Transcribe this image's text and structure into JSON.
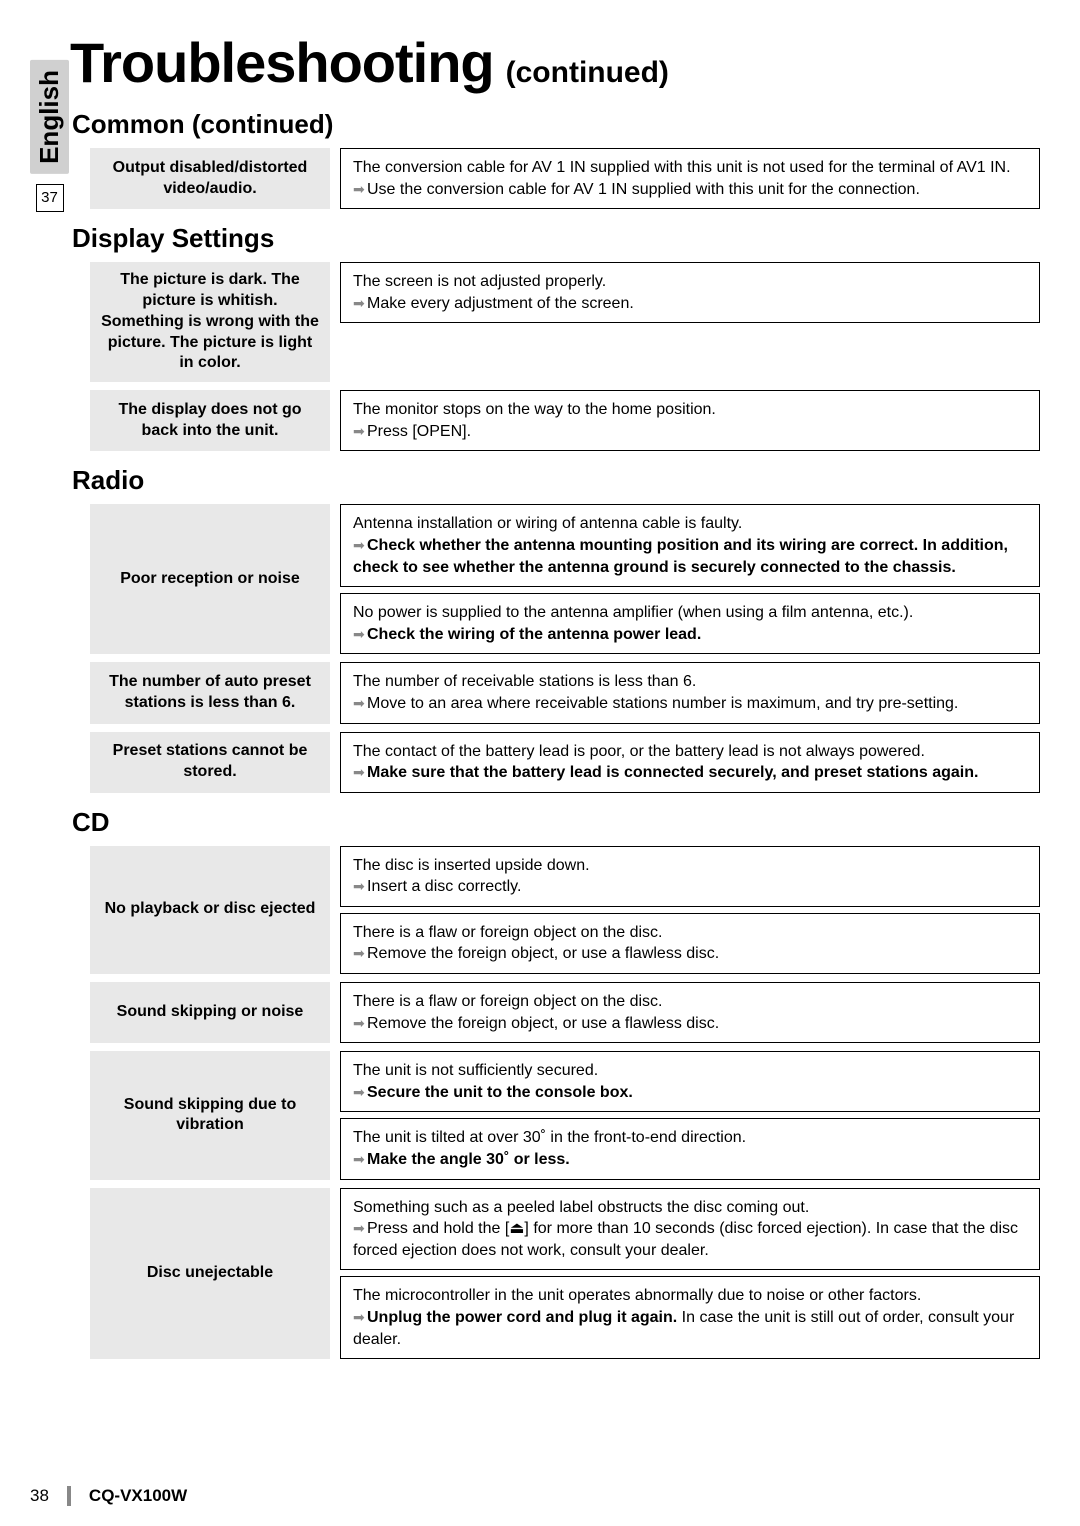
{
  "page": {
    "title": "Troubleshooting",
    "continued": "(continued)",
    "language": "English",
    "sidePage": "37",
    "footerPage": "38",
    "model": "CQ-VX100W"
  },
  "sections": [
    {
      "title": "Common (continued)",
      "items": [
        {
          "label": "Output disabled/distorted video/audio.",
          "solutions": [
            {
              "cause": "The conversion cable for AV 1 IN supplied with this unit is not used for the terminal of AV1 IN.",
              "action": "Use the conversion cable for AV 1 IN supplied with this unit for the connection.",
              "indent": "connection."
            }
          ]
        }
      ]
    },
    {
      "title": "Display Settings",
      "items": [
        {
          "label": "The picture is dark. The picture is whitish. Something is wrong with the picture. The picture is light in color.",
          "solutions": [
            {
              "cause": "The screen is not adjusted properly.",
              "action": "Make every adjustment of the screen."
            }
          ]
        },
        {
          "label": "The display does not go back into the unit.",
          "solutions": [
            {
              "cause": "The monitor stops on the way to the home position.",
              "action": "Press [OPEN]."
            }
          ]
        }
      ]
    },
    {
      "title": "Radio",
      "items": [
        {
          "label": "Poor reception or noise",
          "solutions": [
            {
              "cause": "Antenna installation or wiring of antenna cable is faulty.",
              "actionBold": "Check whether the antenna mounting position and its wiring are correct. In addition, check to see whether the antenna ground is securely connected to the chassis."
            },
            {
              "cause": "No power is supplied to the antenna amplifier (when using a film antenna, etc.).",
              "actionBold": "Check the wiring of the antenna power lead."
            }
          ]
        },
        {
          "label": "The number of auto preset stations is less than 6.",
          "solutions": [
            {
              "cause": "The number of receivable stations is less than 6.",
              "action": "Move to an area where receivable stations number is maximum, and try pre-setting.",
              "indent": "setting."
            }
          ]
        },
        {
          "label": "Preset stations cannot be stored.",
          "solutions": [
            {
              "cause": "The contact of the battery lead is poor, or the battery lead is not always powered.",
              "actionBold": "Make sure that the battery lead is connected securely, and preset stations again."
            }
          ]
        }
      ]
    },
    {
      "title": "CD",
      "items": [
        {
          "label": "No playback or disc ejected",
          "solutions": [
            {
              "cause": "The disc is inserted upside down.",
              "action": "Insert a disc correctly."
            },
            {
              "cause": "There is a flaw or foreign object on the disc.",
              "action": "Remove the foreign object, or use a flawless disc."
            }
          ]
        },
        {
          "label": "Sound skipping or noise",
          "solutions": [
            {
              "cause": "There is a flaw or foreign object on the disc.",
              "action": "Remove the foreign object, or use a flawless disc."
            }
          ]
        },
        {
          "label": "Sound skipping due to vibration",
          "solutions": [
            {
              "cause": "The unit is not sufficiently secured.",
              "actionBold": "Secure the unit to the console box."
            },
            {
              "cause": "The unit is tilted at over 30˚ in the front-to-end direction.",
              "actionBold": "Make the angle 30˚ or less."
            }
          ]
        },
        {
          "label": "Disc unejectable",
          "solutions": [
            {
              "cause": "Something such as a peeled label obstructs the disc coming out.",
              "action": "Press and hold the [⏏] for more than 10 seconds (disc forced ejection). In case that the disc forced ejection does not work, consult your dealer."
            },
            {
              "cause": "The microcontroller in the unit operates abnormally due to noise or other factors.",
              "actionMixed": {
                "bold": "Unplug the power cord and plug it again.",
                "rest": " In case the unit is still out of order, consult your dealer."
              }
            }
          ]
        }
      ]
    }
  ]
}
